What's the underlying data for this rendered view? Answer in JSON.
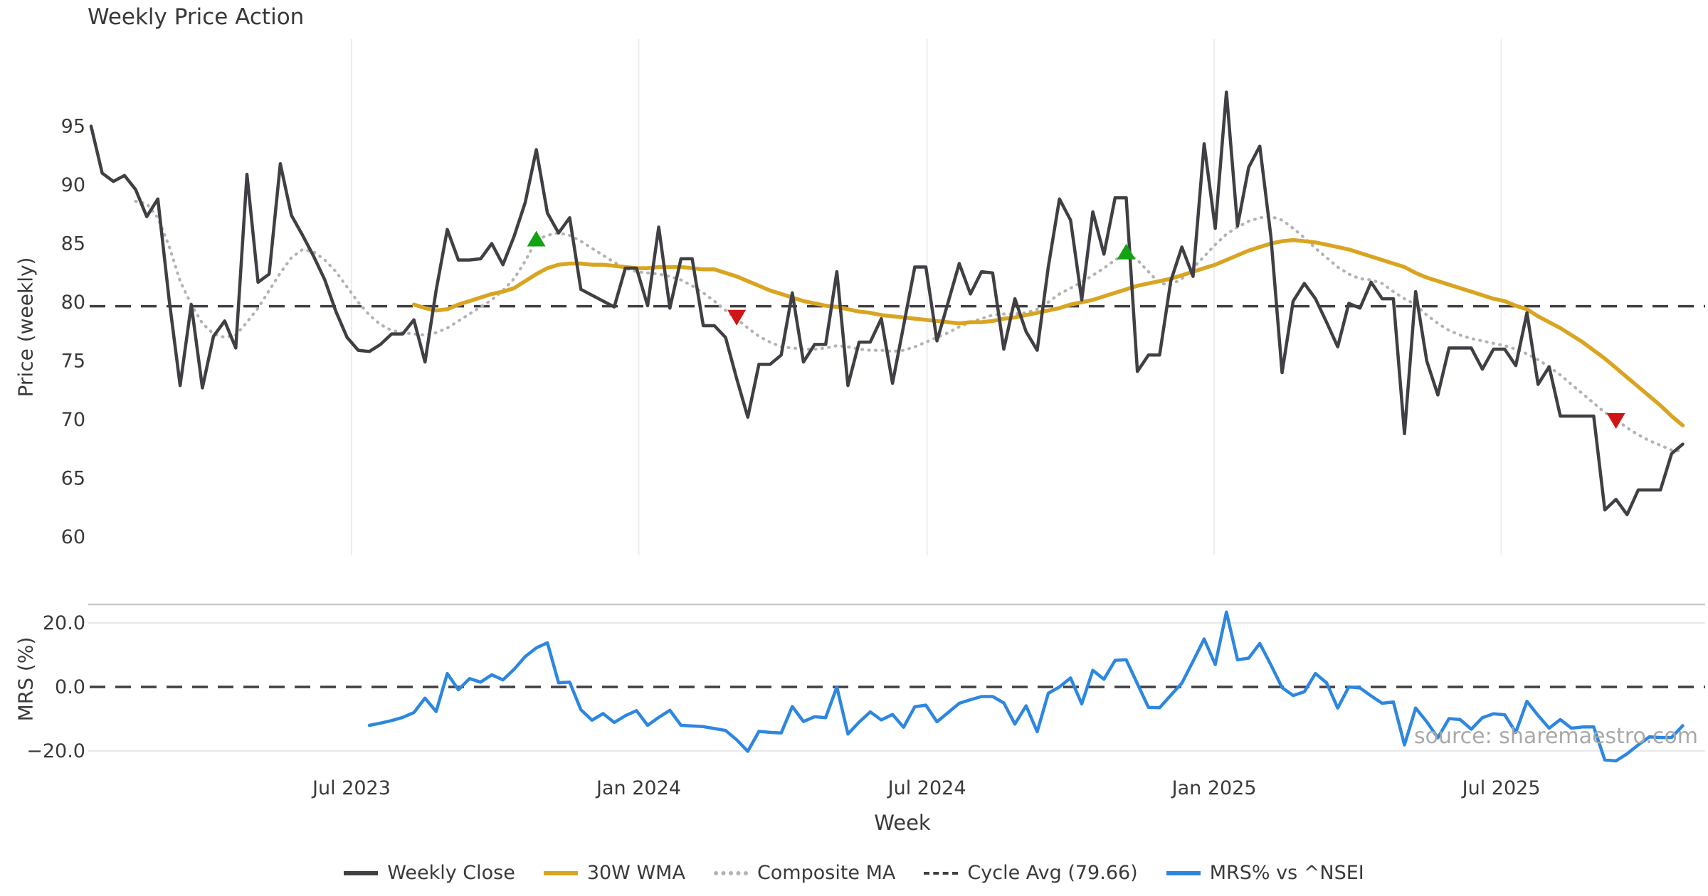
{
  "title": "Weekly Price Action",
  "watermark": "source: sharemaestro.com",
  "legend": [
    {
      "label": "Weekly Close",
      "type": "solid",
      "color": "#3f3f44"
    },
    {
      "label": "30W WMA",
      "type": "solid",
      "color": "#d9a521"
    },
    {
      "label": "Composite MA",
      "type": "dotted",
      "color": "#b3b3b3"
    },
    {
      "label": "Cycle Avg (79.66)",
      "type": "dashed",
      "color": "#3f3f44"
    },
    {
      "label": "MRS% vs ^NSEI",
      "type": "solid",
      "color": "#2d87e0"
    }
  ],
  "chart_data": {
    "type": "line",
    "xlabel": "Week",
    "x_unit": "week_index",
    "grid": "vertical-only-top-panel",
    "legend_position": "bottom-center",
    "xticks": [
      {
        "week": 23.4,
        "label": "Jul 2023"
      },
      {
        "week": 49.2,
        "label": "Jan 2024"
      },
      {
        "week": 75.1,
        "label": "Jul 2024"
      },
      {
        "week": 100.9,
        "label": "Jan 2025"
      },
      {
        "week": 126.7,
        "label": "Jul 2025"
      }
    ],
    "panels": [
      {
        "ylabel": "Price (weekly)",
        "ylim": [
          58.2,
          102.5
        ],
        "yticks": [
          95,
          90,
          85,
          80,
          75,
          70,
          65,
          60
        ],
        "cycle_avg": 79.66,
        "cycle_avg_color": "#3f3f44",
        "series": [
          {
            "name": "Weekly Close",
            "color": "#3f3f44",
            "style": "solid",
            "start_week": 0,
            "values": [
              95.0,
              91.0,
              90.3,
              90.8,
              89.6,
              87.3,
              88.8,
              80.3,
              72.9,
              79.8,
              72.7,
              77.1,
              78.4,
              76.1,
              90.9,
              81.7,
              82.4,
              91.8,
              87.4,
              85.7,
              83.9,
              81.9,
              79.2,
              77.0,
              75.9,
              75.8,
              76.4,
              77.3,
              77.3,
              78.5,
              74.9,
              81.0,
              86.2,
              83.6,
              83.6,
              83.7,
              85.0,
              83.2,
              85.6,
              88.5,
              93.0,
              87.6,
              85.9,
              87.2,
              81.1,
              80.6,
              80.1,
              79.6,
              82.9,
              82.9,
              79.7,
              86.4,
              79.5,
              83.7,
              83.7,
              78.0,
              78.0,
              77.0,
              73.5,
              70.2,
              74.7,
              74.7,
              75.5,
              80.8,
              74.9,
              76.4,
              76.4,
              82.6,
              72.9,
              76.6,
              76.6,
              78.6,
              73.1,
              78.0,
              83.0,
              83.0,
              76.7,
              80.0,
              83.3,
              80.7,
              82.6,
              82.5,
              76.0,
              80.3,
              77.5,
              75.9,
              83.0,
              88.8,
              87.0,
              80.2,
              87.7,
              84.1,
              88.9,
              88.9,
              74.1,
              75.5,
              75.5,
              81.8,
              84.7,
              82.2,
              93.5,
              86.3,
              97.9,
              86.5,
              91.5,
              93.3,
              85.6,
              74.0,
              80.1,
              81.6,
              80.3,
              78.3,
              76.2,
              79.9,
              79.5,
              81.7,
              80.3,
              80.3,
              68.8,
              80.9,
              75.0,
              72.1,
              76.1,
              76.1,
              76.1,
              74.3,
              76.0,
              76.0,
              74.6,
              79.1,
              73.0,
              74.5,
              70.3,
              70.3,
              70.3,
              70.3,
              62.3,
              63.2,
              61.9,
              64.0,
              64.0,
              64.0,
              67.1,
              67.9
            ]
          },
          {
            "name": "30W WMA",
            "color": "#d9a521",
            "style": "solid",
            "start_week": 29,
            "values": [
              79.8,
              79.5,
              79.3,
              79.4,
              79.8,
              80.1,
              80.4,
              80.7,
              80.9,
              81.2,
              81.8,
              82.4,
              82.9,
              83.2,
              83.3,
              83.3,
              83.2,
              83.2,
              83.1,
              83.0,
              82.9,
              82.9,
              83.0,
              83.0,
              83.0,
              82.9,
              82.8,
              82.8,
              82.5,
              82.2,
              81.8,
              81.4,
              81.0,
              80.7,
              80.4,
              80.1,
              79.9,
              79.7,
              79.6,
              79.4,
              79.2,
              79.1,
              78.9,
              78.8,
              78.7,
              78.6,
              78.5,
              78.4,
              78.3,
              78.2,
              78.3,
              78.3,
              78.4,
              78.6,
              78.7,
              78.9,
              79.1,
              79.3,
              79.5,
              79.8,
              80.0,
              80.2,
              80.5,
              80.8,
              81.1,
              81.4,
              81.6,
              81.8,
              82.0,
              82.3,
              82.6,
              82.9,
              83.2,
              83.6,
              84.0,
              84.4,
              84.7,
              85.0,
              85.2,
              85.3,
              85.2,
              85.1,
              84.9,
              84.7,
              84.5,
              84.2,
              83.9,
              83.6,
              83.3,
              83.0,
              82.5,
              82.1,
              81.8,
              81.5,
              81.2,
              80.9,
              80.6,
              80.3,
              80.1,
              79.7,
              79.4,
              78.8,
              78.3,
              77.8,
              77.2,
              76.6,
              75.9,
              75.2,
              74.4,
              73.6,
              72.8,
              72.0,
              71.2,
              70.3,
              69.5
            ]
          },
          {
            "name": "Composite MA",
            "color": "#b3b3b3",
            "style": "dotted",
            "start_week": 4,
            "values": [
              88.6,
              88.4,
              87.2,
              84.8,
              81.8,
              79.8,
              78.2,
              77.3,
              77.0,
              77.2,
              78.3,
              79.5,
              81.0,
              82.5,
              83.8,
              84.5,
              84.3,
              83.6,
              82.6,
              81.3,
              80.0,
              78.9,
              78.1,
              77.6,
              77.4,
              77.3,
              77.2,
              77.4,
              77.8,
              78.4,
              79.0,
              79.6,
              80.2,
              81.0,
              82.0,
              83.5,
              85.3,
              85.7,
              85.9,
              85.7,
              85.2,
              84.6,
              84.0,
              83.4,
              82.9,
              82.6,
              82.5,
              82.4,
              82.2,
              81.9,
              81.4,
              80.8,
              80.1,
              79.3,
              78.6,
              77.8,
              77.1,
              76.6,
              76.2,
              76.1,
              76.0,
              76.0,
              76.1,
              76.3,
              76.2,
              76.0,
              75.9,
              75.9,
              75.8,
              75.9,
              76.2,
              76.6,
              77.0,
              77.4,
              77.9,
              78.3,
              78.6,
              78.9,
              79.0,
              79.0,
              79.1,
              79.4,
              80.0,
              80.7,
              81.2,
              81.7,
              82.3,
              82.9,
              83.6,
              84.2,
              83.6,
              82.6,
              81.6,
              81.5,
              82.0,
              82.9,
              83.9,
              84.9,
              85.8,
              86.4,
              86.9,
              87.2,
              87.3,
              87.0,
              86.3,
              85.5,
              84.6,
              83.8,
              83.0,
              82.4,
              82.0,
              81.9,
              81.6,
              80.9,
              80.3,
              79.8,
              78.9,
              78.2,
              77.6,
              77.2,
              76.9,
              76.7,
              76.5,
              76.3,
              76.0,
              75.6,
              75.1,
              74.5,
              73.8,
              73.0,
              72.2,
              71.4,
              70.6,
              70.0,
              69.3,
              68.7,
              68.2,
              67.8,
              67.4,
              67.3
            ]
          }
        ],
        "markers": {
          "buy": {
            "shape": "triangle-up",
            "color": "#12a312",
            "points": [
              {
                "week": 40,
                "price": 85.3
              },
              {
                "week": 93,
                "price": 84.2
              }
            ]
          },
          "sell": {
            "shape": "triangle-down",
            "color": "#d01515",
            "points": [
              {
                "week": 58,
                "price": 78.8
              },
              {
                "week": 137,
                "price": 70.0
              }
            ]
          }
        }
      },
      {
        "ylabel": "MRS (%)",
        "ylim": [
          -24.5,
          25.8
        ],
        "yticks": [
          {
            "v": 20,
            "label": "20.0"
          },
          {
            "v": 0,
            "label": "0.0"
          },
          {
            "v": -20,
            "label": "−20.0"
          }
        ],
        "zero_line": 0,
        "series": [
          {
            "name": "MRS% vs ^NSEI",
            "color": "#2d87e0",
            "style": "solid",
            "start_week": 25,
            "values": [
              -12.0,
              -11.3,
              -10.5,
              -9.5,
              -8.0,
              -3.5,
              -7.7,
              4.2,
              -0.9,
              2.6,
              1.5,
              3.8,
              2.2,
              5.5,
              9.5,
              12.2,
              13.8,
              1.3,
              1.5,
              -7.1,
              -10.4,
              -8.3,
              -11.1,
              -9.0,
              -7.4,
              -12.0,
              -9.5,
              -7.3,
              -12.0,
              -12.2,
              -12.4,
              -13.0,
              -13.6,
              -16.5,
              -20.1,
              -13.9,
              -14.2,
              -14.4,
              -6.1,
              -10.8,
              -9.3,
              -9.6,
              0.0,
              -14.7,
              -11.0,
              -7.8,
              -10.3,
              -8.6,
              -12.6,
              -6.2,
              -5.7,
              -10.9,
              -8.0,
              -5.1,
              -4.0,
              -3.0,
              -3.0,
              -5.0,
              -11.6,
              -5.9,
              -14.0,
              -2.0,
              0.0,
              2.8,
              -5.3,
              5.2,
              2.4,
              8.3,
              8.5,
              1.0,
              -6.4,
              -6.5,
              -2.6,
              1.2,
              8.0,
              15.0,
              7.0,
              23.4,
              8.5,
              9.0,
              13.6,
              6.9,
              -0.2,
              -2.7,
              -1.5,
              4.2,
              1.3,
              -6.6,
              0.0,
              -0.3,
              -2.8,
              -5.1,
              -4.7,
              -18.1,
              -6.6,
              -10.9,
              -15.9,
              -9.9,
              -10.2,
              -13.2,
              -9.6,
              -8.4,
              -8.7,
              -14.2,
              -4.5,
              -8.9,
              -12.9,
              -10.2,
              -12.9,
              -12.5,
              -12.5,
              -22.8,
              -23.1,
              -20.9,
              -18.1,
              -15.6,
              -15.8,
              -15.8,
              -12.1
            ]
          }
        ]
      }
    ]
  }
}
